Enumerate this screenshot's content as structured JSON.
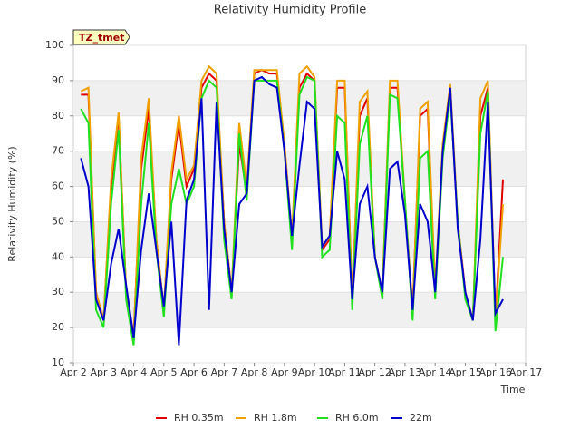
{
  "chart_data": {
    "type": "line",
    "title": "Relativity Humidity Profile",
    "xlabel": "Time",
    "ylabel": "Relativity Humidity (%)",
    "annotation": "TZ_tmet",
    "grid": true,
    "legend": "bottom",
    "xlim": [
      0,
      15
    ],
    "xticks": [
      {
        "value": 0,
        "label": "Apr 2"
      },
      {
        "value": 1,
        "label": "Apr 3"
      },
      {
        "value": 2,
        "label": "Apr 4"
      },
      {
        "value": 3,
        "label": "Apr 5"
      },
      {
        "value": 4,
        "label": "Apr 6"
      },
      {
        "value": 5,
        "label": "Apr 7"
      },
      {
        "value": 6,
        "label": "Apr 8"
      },
      {
        "value": 7,
        "label": "Apr 9"
      },
      {
        "value": 8,
        "label": "Apr 10"
      },
      {
        "value": 9,
        "label": "Apr 11"
      },
      {
        "value": 10,
        "label": "Apr 12"
      },
      {
        "value": 11,
        "label": "Apr 13"
      },
      {
        "value": 12,
        "label": "Apr 14"
      },
      {
        "value": 13,
        "label": "Apr 15"
      },
      {
        "value": 14,
        "label": "Apr 16"
      },
      {
        "value": 15,
        "label": "Apr 17"
      }
    ],
    "ylim": [
      10,
      100
    ],
    "yticks": [
      10,
      20,
      30,
      40,
      50,
      60,
      70,
      80,
      90,
      100
    ],
    "x": [
      0.25,
      0.5,
      0.75,
      1,
      1.25,
      1.5,
      1.75,
      2,
      2.25,
      2.5,
      2.75,
      3,
      3.25,
      3.5,
      3.75,
      4,
      4.25,
      4.5,
      4.75,
      5,
      5.25,
      5.5,
      5.75,
      6,
      6.25,
      6.5,
      6.75,
      7,
      7.25,
      7.5,
      7.75,
      8,
      8.25,
      8.5,
      8.75,
      9,
      9.25,
      9.5,
      9.75,
      10,
      10.25,
      10.5,
      10.75,
      11,
      11.25,
      11.5,
      11.75,
      12,
      12.25,
      12.5,
      12.75,
      13,
      13.25,
      13.5,
      13.75,
      14,
      14.25
    ],
    "series": [
      {
        "name": "RH 0.35m",
        "color": "#e00000",
        "values": [
          86,
          86,
          30,
          22,
          60,
          80,
          30,
          18,
          65,
          82,
          45,
          25,
          62,
          78,
          60,
          65,
          88,
          92,
          90,
          50,
          30,
          72,
          58,
          92,
          93,
          92,
          92,
          72,
          45,
          88,
          92,
          90,
          42,
          45,
          88,
          88,
          28,
          80,
          85,
          40,
          30,
          88,
          88,
          55,
          25,
          80,
          82,
          30,
          70,
          87,
          50,
          30,
          22,
          80,
          88,
          22,
          62
        ]
      },
      {
        "name": "RH 1.8m",
        "color": "#f0a000",
        "values": [
          87,
          88,
          30,
          22,
          62,
          81,
          30,
          17,
          68,
          85,
          45,
          25,
          64,
          80,
          62,
          66,
          90,
          94,
          92,
          50,
          30,
          78,
          60,
          93,
          93,
          93,
          93,
          72,
          46,
          92,
          94,
          91,
          43,
          46,
          90,
          90,
          27,
          84,
          87,
          40,
          30,
          90,
          90,
          56,
          24,
          82,
          84,
          31,
          72,
          89,
          50,
          29,
          22,
          85,
          90,
          22,
          55
        ]
      },
      {
        "name": "RH 6.0m",
        "color": "#20e020",
        "values": [
          82,
          78,
          25,
          20,
          55,
          76,
          28,
          15,
          55,
          78,
          42,
          23,
          55,
          65,
          55,
          60,
          85,
          90,
          88,
          45,
          28,
          75,
          56,
          90,
          90,
          90,
          90,
          70,
          42,
          86,
          91,
          90,
          40,
          42,
          80,
          78,
          25,
          72,
          80,
          40,
          28,
          86,
          85,
          56,
          22,
          68,
          70,
          28,
          68,
          86,
          50,
          28,
          22,
          75,
          87,
          19,
          40
        ]
      },
      {
        "name": "22m",
        "color": "#0000cc",
        "values": [
          68,
          60,
          28,
          22,
          38,
          48,
          32,
          17,
          42,
          58,
          42,
          26,
          50,
          15,
          56,
          62,
          85,
          25,
          84,
          48,
          30,
          55,
          58,
          90,
          91,
          89,
          88,
          70,
          46,
          66,
          84,
          82,
          43,
          46,
          70,
          62,
          28,
          55,
          60,
          40,
          30,
          65,
          67,
          52,
          25,
          55,
          50,
          30,
          70,
          88,
          48,
          30,
          22,
          45,
          84,
          24,
          28
        ]
      }
    ]
  }
}
